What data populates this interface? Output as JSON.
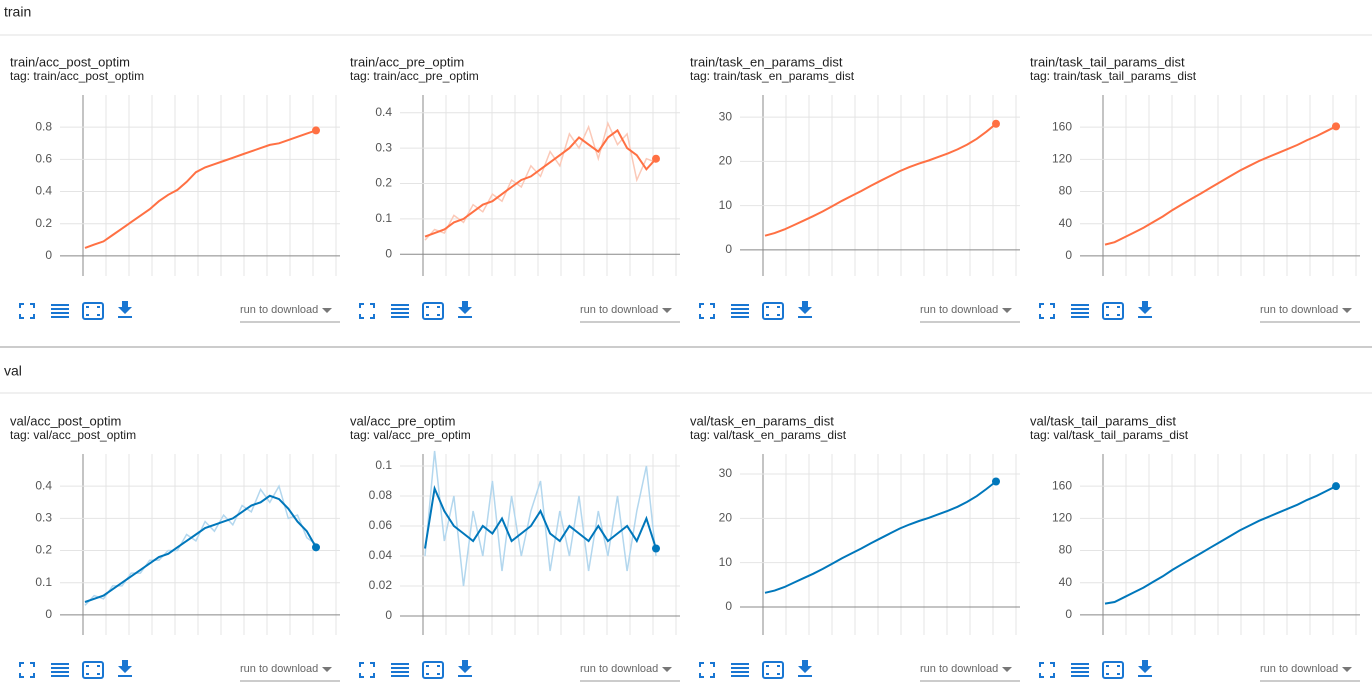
{
  "sections": [
    {
      "title": "train",
      "cards": [
        {
          "title": "train/acc_post_optim",
          "tag": "tag: train/acc_post_optim",
          "download_label": "run to download",
          "chart_data": {
            "type": "line",
            "ylim": [
              -0.1,
              1.0
            ],
            "yticks": [
              0,
              0.2,
              0.4,
              0.6,
              0.8
            ],
            "grid": true,
            "series": [
              {
                "color": "#ff7043",
                "values": [
                  0.05,
                  0.07,
                  0.09,
                  0.13,
                  0.17,
                  0.21,
                  0.25,
                  0.29,
                  0.34,
                  0.38,
                  0.41,
                  0.46,
                  0.52,
                  0.55,
                  0.57,
                  0.59,
                  0.61,
                  0.63,
                  0.65,
                  0.67,
                  0.69,
                  0.7,
                  0.72,
                  0.74,
                  0.76,
                  0.78
                ]
              }
            ]
          }
        },
        {
          "title": "train/acc_pre_optim",
          "tag": "tag: train/acc_pre_optim",
          "download_label": "run to download",
          "chart_data": {
            "type": "line",
            "ylim": [
              -0.05,
              0.45
            ],
            "yticks": [
              0,
              0.1,
              0.2,
              0.3,
              0.4
            ],
            "grid": true,
            "series": [
              {
                "color": "#fbc9b8",
                "values": [
                  0.04,
                  0.07,
                  0.06,
                  0.11,
                  0.09,
                  0.14,
                  0.12,
                  0.17,
                  0.15,
                  0.21,
                  0.19,
                  0.25,
                  0.22,
                  0.29,
                  0.25,
                  0.34,
                  0.3,
                  0.36,
                  0.27,
                  0.37,
                  0.31,
                  0.34,
                  0.21,
                  0.27,
                  0.26
                ]
              },
              {
                "color": "#ff7043",
                "values": [
                  0.05,
                  0.06,
                  0.07,
                  0.09,
                  0.1,
                  0.12,
                  0.14,
                  0.15,
                  0.17,
                  0.19,
                  0.21,
                  0.22,
                  0.24,
                  0.26,
                  0.28,
                  0.3,
                  0.33,
                  0.31,
                  0.29,
                  0.33,
                  0.35,
                  0.3,
                  0.28,
                  0.24,
                  0.27
                ]
              }
            ]
          }
        },
        {
          "title": "train/task_en_params_dist",
          "tag": "tag: train/task_en_params_dist",
          "download_label": "run to download",
          "chart_data": {
            "type": "line",
            "ylim": [
              -5,
              35
            ],
            "yticks": [
              0,
              10,
              20,
              30
            ],
            "grid": true,
            "series": [
              {
                "color": "#ff7043",
                "values": [
                  3.2,
                  3.8,
                  4.6,
                  5.6,
                  6.6,
                  7.6,
                  8.7,
                  9.9,
                  11.1,
                  12.2,
                  13.3,
                  14.5,
                  15.6,
                  16.7,
                  17.8,
                  18.7,
                  19.5,
                  20.2,
                  21.0,
                  21.8,
                  22.7,
                  23.8,
                  25.1,
                  26.7,
                  28.5
                ]
              }
            ]
          }
        },
        {
          "title": "train/task_tail_params_dist",
          "tag": "tag: train/task_tail_params_dist",
          "download_label": "run to download",
          "chart_data": {
            "type": "line",
            "ylim": [
              -20,
              200
            ],
            "yticks": [
              0,
              40,
              80,
              120,
              160
            ],
            "grid": true,
            "series": [
              {
                "color": "#ff7043",
                "values": [
                  14,
                  17,
                  23,
                  29,
                  35,
                  42,
                  49,
                  57,
                  64,
                  71,
                  78,
                  85,
                  92,
                  99,
                  106,
                  112,
                  118,
                  123,
                  128,
                  133,
                  138,
                  144,
                  149,
                  155,
                  161
                ]
              }
            ]
          }
        }
      ]
    },
    {
      "title": "val",
      "cards": [
        {
          "title": "val/acc_post_optim",
          "tag": "tag: val/acc_post_optim",
          "download_label": "run to download",
          "chart_data": {
            "type": "line",
            "ylim": [
              -0.05,
              0.5
            ],
            "yticks": [
              0,
              0.1,
              0.2,
              0.3,
              0.4
            ],
            "grid": true,
            "series": [
              {
                "color": "#b3d7ee",
                "values": [
                  0.03,
                  0.06,
                  0.05,
                  0.09,
                  0.09,
                  0.13,
                  0.13,
                  0.17,
                  0.17,
                  0.2,
                  0.2,
                  0.25,
                  0.23,
                  0.29,
                  0.26,
                  0.31,
                  0.28,
                  0.34,
                  0.32,
                  0.39,
                  0.35,
                  0.4,
                  0.3,
                  0.31,
                  0.24,
                  0.22
                ]
              },
              {
                "color": "#0077bb",
                "values": [
                  0.04,
                  0.05,
                  0.06,
                  0.08,
                  0.1,
                  0.12,
                  0.14,
                  0.16,
                  0.18,
                  0.19,
                  0.21,
                  0.23,
                  0.25,
                  0.27,
                  0.28,
                  0.29,
                  0.3,
                  0.32,
                  0.34,
                  0.35,
                  0.37,
                  0.36,
                  0.33,
                  0.29,
                  0.26,
                  0.21
                ]
              }
            ]
          }
        },
        {
          "title": "val/acc_pre_optim",
          "tag": "tag: val/acc_pre_optim",
          "download_label": "run to download",
          "chart_data": {
            "type": "line",
            "ylim": [
              -0.01,
              0.108
            ],
            "yticks": [
              0,
              0.02,
              0.04,
              0.06,
              0.08,
              0.1
            ],
            "grid": true,
            "series": [
              {
                "color": "#b3d7ee",
                "values": [
                  0.04,
                  0.11,
                  0.05,
                  0.08,
                  0.02,
                  0.07,
                  0.04,
                  0.09,
                  0.03,
                  0.08,
                  0.04,
                  0.07,
                  0.09,
                  0.03,
                  0.07,
                  0.04,
                  0.08,
                  0.03,
                  0.07,
                  0.04,
                  0.08,
                  0.03,
                  0.07,
                  0.1,
                  0.04
                ]
              },
              {
                "color": "#0077bb",
                "values": [
                  0.045,
                  0.085,
                  0.07,
                  0.06,
                  0.055,
                  0.05,
                  0.06,
                  0.055,
                  0.065,
                  0.05,
                  0.055,
                  0.06,
                  0.07,
                  0.055,
                  0.05,
                  0.06,
                  0.055,
                  0.05,
                  0.06,
                  0.05,
                  0.055,
                  0.06,
                  0.05,
                  0.065,
                  0.045
                ]
              }
            ]
          }
        },
        {
          "title": "val/task_en_params_dist",
          "tag": "tag: val/task_en_params_dist",
          "download_label": "run to download",
          "chart_data": {
            "type": "line",
            "ylim": [
              -5.4,
              34.5
            ],
            "yticks": [
              0,
              10,
              20,
              30
            ],
            "grid": true,
            "series": [
              {
                "color": "#0077bb",
                "values": [
                  3.2,
                  3.7,
                  4.5,
                  5.5,
                  6.5,
                  7.5,
                  8.6,
                  9.8,
                  11.0,
                  12.1,
                  13.2,
                  14.4,
                  15.5,
                  16.6,
                  17.7,
                  18.6,
                  19.4,
                  20.1,
                  20.9,
                  21.7,
                  22.6,
                  23.7,
                  25.0,
                  26.6,
                  28.3
                ]
              }
            ]
          }
        },
        {
          "title": "val/task_tail_params_dist",
          "tag": "tag: val/task_tail_params_dist",
          "download_label": "run to download",
          "chart_data": {
            "type": "line",
            "ylim": [
              -20,
              200
            ],
            "yticks": [
              0,
              40,
              80,
              120,
              160
            ],
            "grid": true,
            "series": [
              {
                "color": "#0077bb",
                "values": [
                  14,
                  16,
                  22,
                  28,
                  34,
                  41,
                  48,
                  56,
                  63,
                  70,
                  77,
                  84,
                  91,
                  98,
                  105,
                  111,
                  117,
                  122,
                  127,
                  132,
                  137,
                  143,
                  148,
                  154,
                  160
                ]
              }
            ]
          }
        }
      ]
    }
  ]
}
